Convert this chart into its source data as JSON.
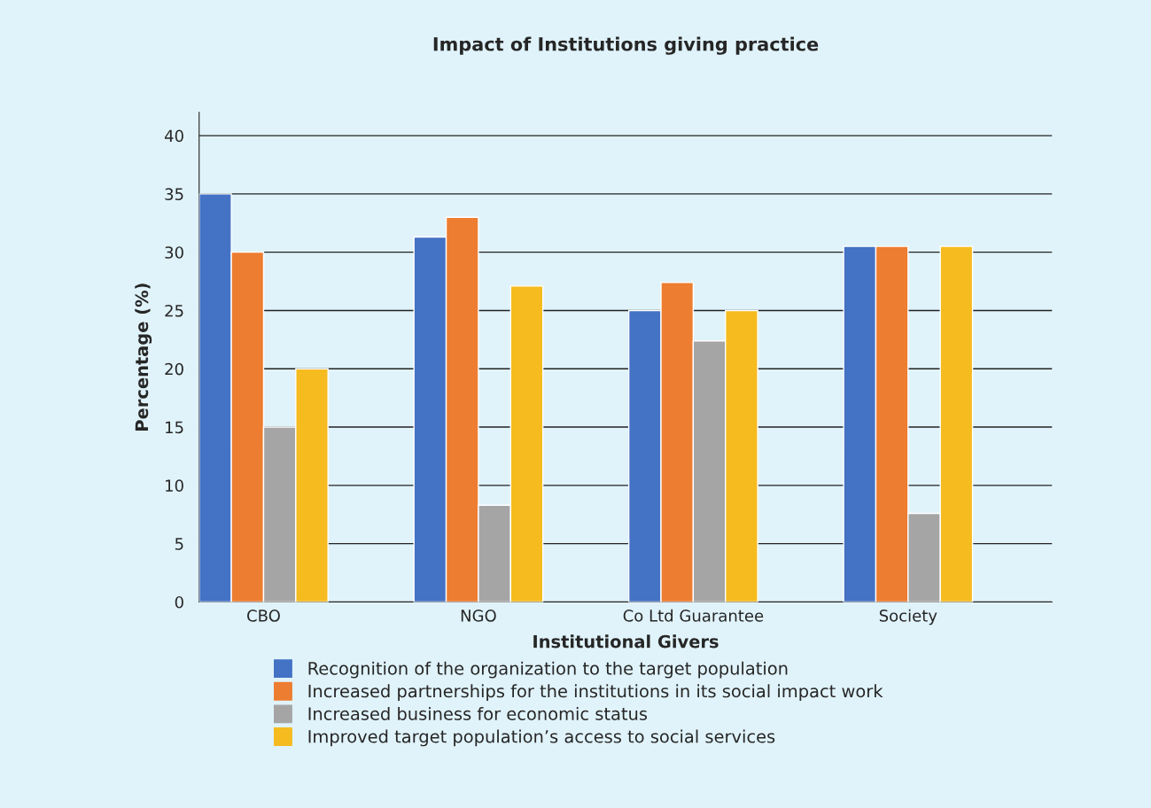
{
  "chart_data": {
    "type": "bar",
    "title": "Impact of Institutions giving practice",
    "xlabel": "Institutional Givers",
    "ylabel": "Percentage (%)",
    "categories": [
      "CBO",
      "NGO",
      "Co Ltd Guarantee",
      "Society"
    ],
    "series": [
      {
        "name": "Recognition of the organization to the target population",
        "color": "#4472c4",
        "values": [
          35,
          31.3,
          25,
          30.5
        ]
      },
      {
        "name": "Increased partnerships for the institutions in its social impact work",
        "color": "#ed7d31",
        "values": [
          30,
          33,
          27.4,
          30.5
        ]
      },
      {
        "name": "Increased business for economic status",
        "color": "#a5a5a5",
        "values": [
          15,
          8.3,
          22.4,
          7.6
        ]
      },
      {
        "name": "Improved target population’s access to social services",
        "color": "#f5bb1f",
        "values": [
          20,
          27.1,
          25,
          30.5
        ]
      }
    ],
    "ylim": [
      0,
      42
    ],
    "yticks": [
      0,
      5,
      10,
      15,
      20,
      25,
      30,
      35,
      40
    ],
    "grid": "y",
    "legend": "bottom"
  }
}
